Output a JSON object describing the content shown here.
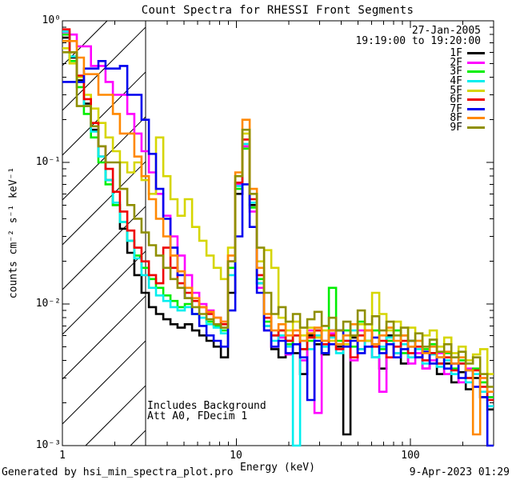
{
  "header": {
    "title": "Count Spectra for RHESSI Front Segments"
  },
  "annotations": {
    "date": "27-Jan-2005",
    "time_range": "19:19:00 to 19:20:00",
    "background_note": "Includes Background",
    "att_note": "Att A0, FDecim 1"
  },
  "footer": {
    "generated_by": "Generated by hsi_min_spectra_plot.pro",
    "timestamp": "9-Apr-2023 01:29"
  },
  "axes": {
    "xlabel": "Energy (keV)",
    "ylabel": "counts cm⁻² s⁻¹ keV⁻¹",
    "x_ticks": [
      "1",
      "10",
      "100"
    ],
    "y_ticks": [
      "10⁰",
      "10⁻¹",
      "10⁻²",
      "10⁻³"
    ]
  },
  "chart_data": {
    "type": "line",
    "subtype": "stepped-histogram-spectra",
    "title": "Count Spectra for RHESSI Front Segments",
    "xlabel": "Energy (keV)",
    "ylabel": "counts cm⁻² s⁻¹ keV⁻¹",
    "x_scale": "log",
    "y_scale": "log",
    "xlim": [
      1,
      300
    ],
    "ylim": [
      0.001,
      1.0
    ],
    "grid": false,
    "legend_position": "top-right",
    "hatch_region": {
      "xmin_keV": 1,
      "xmax_keV": 3,
      "style": "diagonal-hatch",
      "meaning": "below low-energy cutoff"
    },
    "peak_line_keV": 10.5,
    "energy_bin_edges_keV": [
      1.0,
      1.1,
      1.21,
      1.33,
      1.46,
      1.61,
      1.77,
      1.95,
      2.14,
      2.36,
      2.59,
      2.85,
      3.14,
      3.45,
      3.8,
      4.18,
      4.59,
      5.05,
      5.56,
      6.12,
      6.73,
      7.4,
      8.14,
      8.95,
      9.85,
      10.83,
      11.92,
      13.11,
      14.42,
      15.86,
      17.45,
      19.19,
      21.11,
      23.23,
      25.55,
      28.1,
      30.91,
      34.0,
      37.4,
      41.14,
      45.26,
      49.79,
      54.76,
      60.24,
      66.26,
      72.89,
      80.18,
      88.2,
      97.02,
      106.72,
      117.39,
      129.13,
      142.04,
      156.25,
      171.87,
      189.06,
      207.96,
      228.76,
      251.64,
      276.8,
      304.48
    ],
    "series": [
      {
        "name": "1F",
        "color": "#000000",
        "values": [
          0.76,
          0.55,
          0.38,
          0.26,
          0.17,
          0.11,
          0.075,
          0.05,
          0.034,
          0.023,
          0.016,
          0.012,
          0.0095,
          0.0085,
          0.0078,
          0.0072,
          0.0068,
          0.0072,
          0.0065,
          0.006,
          0.0055,
          0.005,
          0.0042,
          0.012,
          0.06,
          0.13,
          0.05,
          0.014,
          0.007,
          0.0048,
          0.0042,
          0.0055,
          0.0045,
          0.0032,
          0.006,
          0.0052,
          0.0044,
          0.0065,
          0.005,
          0.0012,
          0.0058,
          0.0048,
          0.0055,
          0.0042,
          0.0035,
          0.006,
          0.0045,
          0.0038,
          0.005,
          0.0042,
          0.0035,
          0.0045,
          0.0032,
          0.0038,
          0.0028,
          0.0033,
          0.0025,
          0.003,
          0.0022,
          0.0018
        ]
      },
      {
        "name": "2F",
        "color": "#ff00ff",
        "values": [
          0.83,
          0.8,
          0.66,
          0.66,
          0.48,
          0.48,
          0.37,
          0.3,
          0.3,
          0.22,
          0.16,
          0.12,
          0.085,
          0.06,
          0.042,
          0.03,
          0.022,
          0.016,
          0.012,
          0.01,
          0.009,
          0.008,
          0.0075,
          0.02,
          0.07,
          0.13,
          0.045,
          0.013,
          0.0065,
          0.005,
          0.0058,
          0.0044,
          0.0052,
          0.004,
          0.0065,
          0.0017,
          0.0055,
          0.0062,
          0.0048,
          0.0055,
          0.004,
          0.0065,
          0.005,
          0.0042,
          0.0024,
          0.0055,
          0.0045,
          0.006,
          0.0038,
          0.0045,
          0.0035,
          0.004,
          0.0045,
          0.0032,
          0.0038,
          0.0028,
          0.0035,
          0.0026,
          0.003,
          0.0022
        ]
      },
      {
        "name": "3F",
        "color": "#00ee00",
        "values": [
          0.8,
          0.52,
          0.34,
          0.22,
          0.15,
          0.1,
          0.07,
          0.05,
          0.038,
          0.028,
          0.022,
          0.018,
          0.015,
          0.013,
          0.0115,
          0.0105,
          0.0095,
          0.01,
          0.0085,
          0.008,
          0.0075,
          0.007,
          0.0065,
          0.018,
          0.065,
          0.125,
          0.048,
          0.015,
          0.0075,
          0.006,
          0.0065,
          0.0052,
          0.006,
          0.0048,
          0.0055,
          0.0065,
          0.0045,
          0.013,
          0.0055,
          0.0065,
          0.005,
          0.0075,
          0.0055,
          0.0065,
          0.0048,
          0.0055,
          0.0065,
          0.0045,
          0.0055,
          0.0042,
          0.0048,
          0.0052,
          0.0038,
          0.0045,
          0.0035,
          0.004,
          0.003,
          0.0035,
          0.0028,
          0.0022
        ]
      },
      {
        "name": "4F",
        "color": "#00eeee",
        "values": [
          0.84,
          0.56,
          0.37,
          0.25,
          0.165,
          0.11,
          0.075,
          0.052,
          0.038,
          0.028,
          0.021,
          0.016,
          0.013,
          0.0115,
          0.0105,
          0.0095,
          0.009,
          0.0095,
          0.0085,
          0.008,
          0.0072,
          0.0068,
          0.0062,
          0.016,
          0.068,
          0.135,
          0.052,
          0.014,
          0.007,
          0.0055,
          0.006,
          0.005,
          0.001,
          0.0055,
          0.0048,
          0.006,
          0.005,
          0.0058,
          0.0045,
          0.0055,
          0.0065,
          0.0048,
          0.0055,
          0.0042,
          0.005,
          0.0058,
          0.0045,
          0.0052,
          0.0042,
          0.0048,
          0.0038,
          0.0044,
          0.0036,
          0.004,
          0.0032,
          0.0038,
          0.0028,
          0.0032,
          0.0024,
          0.0019
        ]
      },
      {
        "name": "5F",
        "color": "#d6d600",
        "values": [
          0.64,
          0.5,
          0.4,
          0.3,
          0.24,
          0.19,
          0.15,
          0.12,
          0.1,
          0.085,
          0.1,
          0.075,
          0.06,
          0.15,
          0.08,
          0.055,
          0.042,
          0.055,
          0.035,
          0.028,
          0.022,
          0.018,
          0.015,
          0.025,
          0.08,
          0.16,
          0.06,
          0.02,
          0.024,
          0.018,
          0.008,
          0.0065,
          0.0075,
          0.006,
          0.0068,
          0.0058,
          0.0065,
          0.0055,
          0.0065,
          0.0052,
          0.006,
          0.0072,
          0.0055,
          0.012,
          0.0085,
          0.0065,
          0.0075,
          0.006,
          0.0068,
          0.0055,
          0.006,
          0.0065,
          0.005,
          0.0058,
          0.0045,
          0.005,
          0.004,
          0.0044,
          0.0048,
          0.0032
        ]
      },
      {
        "name": "6F",
        "color": "#ee0000",
        "values": [
          0.87,
          0.6,
          0.41,
          0.28,
          0.19,
          0.13,
          0.09,
          0.062,
          0.045,
          0.033,
          0.025,
          0.02,
          0.016,
          0.014,
          0.025,
          0.018,
          0.014,
          0.012,
          0.0105,
          0.0095,
          0.0085,
          0.008,
          0.0072,
          0.02,
          0.072,
          0.145,
          0.055,
          0.016,
          0.008,
          0.006,
          0.0065,
          0.0055,
          0.006,
          0.0048,
          0.0058,
          0.0065,
          0.0052,
          0.006,
          0.0048,
          0.0055,
          0.0042,
          0.006,
          0.0065,
          0.005,
          0.0055,
          0.0042,
          0.005,
          0.0055,
          0.0045,
          0.005,
          0.004,
          0.0045,
          0.0038,
          0.0042,
          0.0034,
          0.0038,
          0.003,
          0.0034,
          0.0026,
          0.0021
        ]
      },
      {
        "name": "7F",
        "color": "#0000ee",
        "values": [
          0.37,
          0.37,
          0.37,
          0.46,
          0.46,
          0.52,
          0.46,
          0.46,
          0.48,
          0.3,
          0.3,
          0.2,
          0.115,
          0.065,
          0.04,
          0.025,
          0.016,
          0.011,
          0.0085,
          0.007,
          0.006,
          0.0055,
          0.005,
          0.009,
          0.03,
          0.07,
          0.035,
          0.012,
          0.0065,
          0.005,
          0.0055,
          0.0045,
          0.0052,
          0.0042,
          0.0021,
          0.0055,
          0.0045,
          0.0052,
          0.0065,
          0.005,
          0.0055,
          0.0045,
          0.005,
          0.0058,
          0.0045,
          0.0052,
          0.0042,
          0.0048,
          0.0055,
          0.0042,
          0.0046,
          0.0038,
          0.0042,
          0.0035,
          0.0038,
          0.003,
          0.0034,
          0.0026,
          0.0022,
          0.001
        ]
      },
      {
        "name": "8F",
        "color": "#ff8800",
        "values": [
          0.72,
          0.72,
          0.55,
          0.42,
          0.42,
          0.3,
          0.3,
          0.22,
          0.16,
          0.16,
          0.11,
          0.08,
          0.055,
          0.04,
          0.03,
          0.022,
          0.017,
          0.013,
          0.011,
          0.0095,
          0.0088,
          0.008,
          0.0075,
          0.022,
          0.085,
          0.2,
          0.065,
          0.018,
          0.0085,
          0.0065,
          0.0072,
          0.006,
          0.0065,
          0.0055,
          0.0062,
          0.0068,
          0.0055,
          0.0065,
          0.0052,
          0.006,
          0.0072,
          0.0055,
          0.0065,
          0.0052,
          0.006,
          0.0068,
          0.0055,
          0.006,
          0.005,
          0.0055,
          0.0045,
          0.005,
          0.0042,
          0.0046,
          0.0038,
          0.0042,
          0.0034,
          0.0012,
          0.003,
          0.0024
        ]
      },
      {
        "name": "9F",
        "color": "#8f8f00",
        "values": [
          0.6,
          0.6,
          0.25,
          0.25,
          0.18,
          0.13,
          0.1,
          0.1,
          0.065,
          0.05,
          0.04,
          0.032,
          0.026,
          0.022,
          0.018,
          0.015,
          0.013,
          0.011,
          0.0095,
          0.0085,
          0.0078,
          0.0072,
          0.0068,
          0.02,
          0.08,
          0.17,
          0.06,
          0.025,
          0.012,
          0.0085,
          0.0095,
          0.0075,
          0.0085,
          0.0068,
          0.0078,
          0.0088,
          0.007,
          0.008,
          0.0065,
          0.0075,
          0.006,
          0.009,
          0.0072,
          0.0082,
          0.0065,
          0.0075,
          0.006,
          0.0068,
          0.0055,
          0.0062,
          0.005,
          0.0056,
          0.0046,
          0.0052,
          0.0042,
          0.0046,
          0.0038,
          0.0042,
          0.0032,
          0.0026
        ]
      }
    ]
  }
}
